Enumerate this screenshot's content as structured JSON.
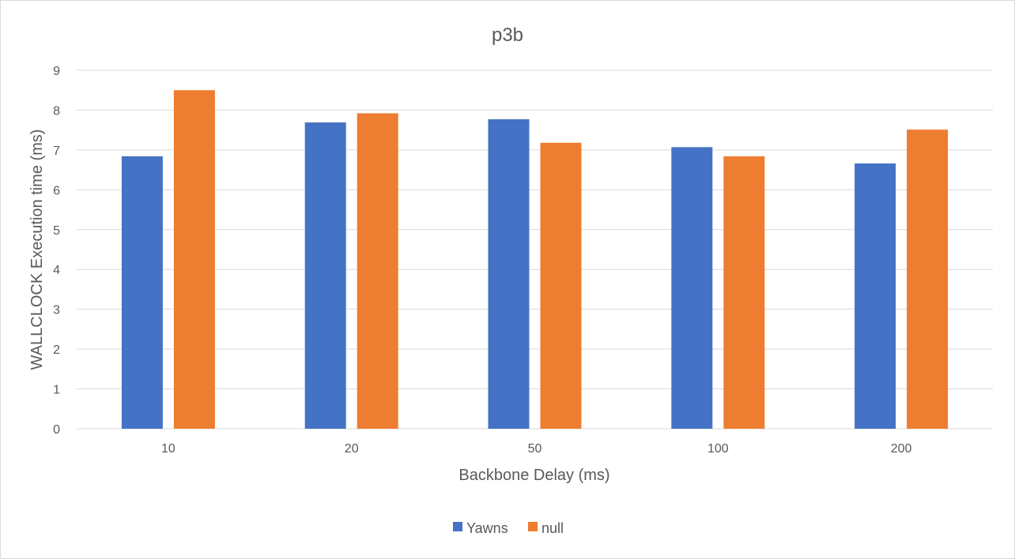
{
  "chart_data": {
    "type": "bar",
    "title": "p3b",
    "xlabel": "Backbone Delay (ms)",
    "ylabel": "WALLCLOCK Execution time (ms)",
    "categories": [
      "10",
      "20",
      "50",
      "100",
      "200"
    ],
    "series": [
      {
        "name": "Yawns",
        "color": "#4472c4",
        "values": [
          6.84,
          7.69,
          7.77,
          7.07,
          6.66
        ]
      },
      {
        "name": "null",
        "color": "#ed7d31",
        "values": [
          8.5,
          7.92,
          7.18,
          6.84,
          7.51
        ]
      }
    ],
    "ylim": [
      0,
      9
    ],
    "yticks": [
      0,
      1,
      2,
      3,
      4,
      5,
      6,
      7,
      8,
      9
    ],
    "grid": true,
    "legend_position": "bottom"
  }
}
